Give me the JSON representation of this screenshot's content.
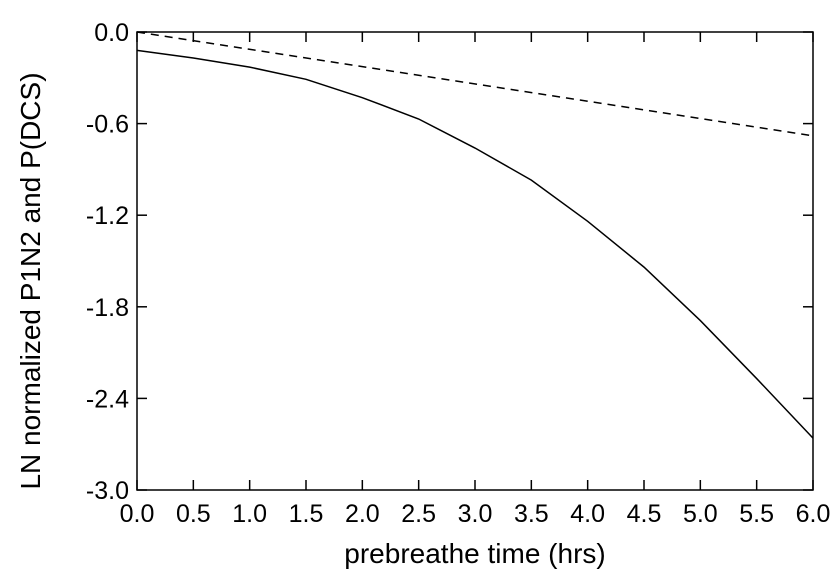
{
  "chart_data": {
    "type": "line",
    "xlabel": "prebreathe time (hrs)",
    "ylabel": "LN normalized P1N2 and P(DCS)",
    "xlim": [
      0.0,
      6.0
    ],
    "ylim": [
      -3.0,
      0.0
    ],
    "x_ticks": [
      0.0,
      0.5,
      1.0,
      1.5,
      2.0,
      2.5,
      3.0,
      3.5,
      4.0,
      4.5,
      5.0,
      5.5,
      6.0
    ],
    "x_tick_labels": [
      "0.0",
      "0.5",
      "1.0",
      "1.5",
      "2.0",
      "2.5",
      "3.0",
      "3.5",
      "4.0",
      "4.5",
      "5.0",
      "5.5",
      "6.0"
    ],
    "y_ticks": [
      0.0,
      -0.6,
      -1.2,
      -1.8,
      -2.4,
      -3.0
    ],
    "y_tick_labels": [
      "0.0",
      "-0.6",
      "-1.2",
      "-1.8",
      "-2.4",
      "-3.0"
    ],
    "grid": false,
    "legend": "none",
    "series": [
      {
        "style": "solid",
        "x": [
          0.0,
          0.5,
          1.0,
          1.5,
          2.0,
          2.5,
          3.0,
          3.5,
          4.0,
          4.5,
          5.0,
          5.5,
          6.0
        ],
        "y": [
          -0.12,
          -0.17,
          -0.23,
          -0.31,
          -0.43,
          -0.57,
          -0.76,
          -0.97,
          -1.24,
          -1.54,
          -1.89,
          -2.27,
          -2.66
        ]
      },
      {
        "style": "dashed",
        "x": [
          0.0,
          6.0
        ],
        "y": [
          0.0,
          -0.68
        ]
      }
    ]
  }
}
